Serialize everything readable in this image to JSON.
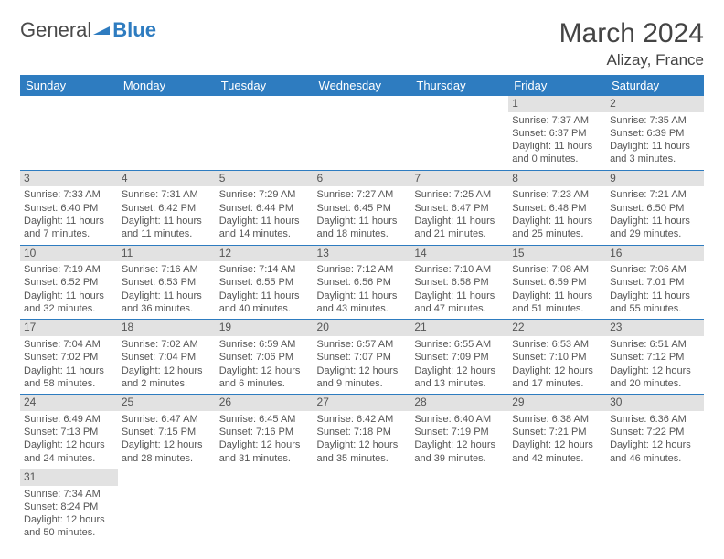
{
  "logo": {
    "text1": "General",
    "text2": "Blue"
  },
  "header": {
    "month_title": "March 2024",
    "location": "Alizay, France"
  },
  "colors": {
    "header_bg": "#2e7cc0",
    "header_fg": "#ffffff",
    "daynum_bg": "#e2e2e2",
    "rule": "#2e7cc0",
    "text": "#555555"
  },
  "weekdays": [
    "Sunday",
    "Monday",
    "Tuesday",
    "Wednesday",
    "Thursday",
    "Friday",
    "Saturday"
  ],
  "weeks": [
    [
      null,
      null,
      null,
      null,
      null,
      {
        "n": "1",
        "sunrise": "7:37 AM",
        "sunset": "6:37 PM",
        "dl": "11 hours and 0 minutes."
      },
      {
        "n": "2",
        "sunrise": "7:35 AM",
        "sunset": "6:39 PM",
        "dl": "11 hours and 3 minutes."
      }
    ],
    [
      {
        "n": "3",
        "sunrise": "7:33 AM",
        "sunset": "6:40 PM",
        "dl": "11 hours and 7 minutes."
      },
      {
        "n": "4",
        "sunrise": "7:31 AM",
        "sunset": "6:42 PM",
        "dl": "11 hours and 11 minutes."
      },
      {
        "n": "5",
        "sunrise": "7:29 AM",
        "sunset": "6:44 PM",
        "dl": "11 hours and 14 minutes."
      },
      {
        "n": "6",
        "sunrise": "7:27 AM",
        "sunset": "6:45 PM",
        "dl": "11 hours and 18 minutes."
      },
      {
        "n": "7",
        "sunrise": "7:25 AM",
        "sunset": "6:47 PM",
        "dl": "11 hours and 21 minutes."
      },
      {
        "n": "8",
        "sunrise": "7:23 AM",
        "sunset": "6:48 PM",
        "dl": "11 hours and 25 minutes."
      },
      {
        "n": "9",
        "sunrise": "7:21 AM",
        "sunset": "6:50 PM",
        "dl": "11 hours and 29 minutes."
      }
    ],
    [
      {
        "n": "10",
        "sunrise": "7:19 AM",
        "sunset": "6:52 PM",
        "dl": "11 hours and 32 minutes."
      },
      {
        "n": "11",
        "sunrise": "7:16 AM",
        "sunset": "6:53 PM",
        "dl": "11 hours and 36 minutes."
      },
      {
        "n": "12",
        "sunrise": "7:14 AM",
        "sunset": "6:55 PM",
        "dl": "11 hours and 40 minutes."
      },
      {
        "n": "13",
        "sunrise": "7:12 AM",
        "sunset": "6:56 PM",
        "dl": "11 hours and 43 minutes."
      },
      {
        "n": "14",
        "sunrise": "7:10 AM",
        "sunset": "6:58 PM",
        "dl": "11 hours and 47 minutes."
      },
      {
        "n": "15",
        "sunrise": "7:08 AM",
        "sunset": "6:59 PM",
        "dl": "11 hours and 51 minutes."
      },
      {
        "n": "16",
        "sunrise": "7:06 AM",
        "sunset": "7:01 PM",
        "dl": "11 hours and 55 minutes."
      }
    ],
    [
      {
        "n": "17",
        "sunrise": "7:04 AM",
        "sunset": "7:02 PM",
        "dl": "11 hours and 58 minutes."
      },
      {
        "n": "18",
        "sunrise": "7:02 AM",
        "sunset": "7:04 PM",
        "dl": "12 hours and 2 minutes."
      },
      {
        "n": "19",
        "sunrise": "6:59 AM",
        "sunset": "7:06 PM",
        "dl": "12 hours and 6 minutes."
      },
      {
        "n": "20",
        "sunrise": "6:57 AM",
        "sunset": "7:07 PM",
        "dl": "12 hours and 9 minutes."
      },
      {
        "n": "21",
        "sunrise": "6:55 AM",
        "sunset": "7:09 PM",
        "dl": "12 hours and 13 minutes."
      },
      {
        "n": "22",
        "sunrise": "6:53 AM",
        "sunset": "7:10 PM",
        "dl": "12 hours and 17 minutes."
      },
      {
        "n": "23",
        "sunrise": "6:51 AM",
        "sunset": "7:12 PM",
        "dl": "12 hours and 20 minutes."
      }
    ],
    [
      {
        "n": "24",
        "sunrise": "6:49 AM",
        "sunset": "7:13 PM",
        "dl": "12 hours and 24 minutes."
      },
      {
        "n": "25",
        "sunrise": "6:47 AM",
        "sunset": "7:15 PM",
        "dl": "12 hours and 28 minutes."
      },
      {
        "n": "26",
        "sunrise": "6:45 AM",
        "sunset": "7:16 PM",
        "dl": "12 hours and 31 minutes."
      },
      {
        "n": "27",
        "sunrise": "6:42 AM",
        "sunset": "7:18 PM",
        "dl": "12 hours and 35 minutes."
      },
      {
        "n": "28",
        "sunrise": "6:40 AM",
        "sunset": "7:19 PM",
        "dl": "12 hours and 39 minutes."
      },
      {
        "n": "29",
        "sunrise": "6:38 AM",
        "sunset": "7:21 PM",
        "dl": "12 hours and 42 minutes."
      },
      {
        "n": "30",
        "sunrise": "6:36 AM",
        "sunset": "7:22 PM",
        "dl": "12 hours and 46 minutes."
      }
    ],
    [
      {
        "n": "31",
        "sunrise": "7:34 AM",
        "sunset": "8:24 PM",
        "dl": "12 hours and 50 minutes."
      },
      null,
      null,
      null,
      null,
      null,
      null
    ]
  ],
  "labels": {
    "sunrise": "Sunrise: ",
    "sunset": "Sunset: ",
    "daylight": "Daylight: "
  }
}
